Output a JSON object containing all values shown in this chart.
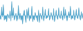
{
  "values": [
    -0.15,
    -0.25,
    0.55,
    -0.1,
    0.7,
    -0.3,
    -0.2,
    -0.15,
    -0.4,
    0.1,
    -0.05,
    -0.2,
    0.3,
    -0.35,
    0.9,
    -0.15,
    0.5,
    -0.3,
    -0.1,
    0.15,
    -0.35,
    -0.2,
    0.65,
    -0.25,
    0.15,
    -0.3,
    -0.1,
    -0.55,
    0.1,
    0.35,
    -0.15,
    -0.45,
    0.4,
    -0.2,
    0.5,
    -0.35,
    -0.1,
    -0.2,
    0.6,
    -0.4,
    -0.1,
    -0.3,
    0.2,
    -0.1,
    -0.2,
    -0.4,
    0.35,
    -0.45,
    0.15,
    -0.1,
    -0.25,
    0.55,
    -0.35,
    -0.1,
    0.4,
    -0.2,
    -0.15,
    -0.1,
    0.45,
    -0.3,
    -0.15,
    0.2,
    -0.1,
    -0.3,
    0.45,
    -0.4,
    -0.1,
    0.35,
    -0.15,
    -0.25,
    0.5,
    -0.1,
    -0.2,
    0.3,
    -0.15,
    -0.3,
    0.55,
    -0.2,
    0.4,
    -0.1,
    -0.35,
    -0.1,
    0.25,
    -0.15,
    0.6,
    -0.25,
    -0.1,
    -0.2,
    0.35,
    -0.3,
    -0.1,
    0.4,
    -0.15,
    -0.2,
    0.5,
    -0.1,
    -0.3,
    0.25,
    -0.2,
    0.15
  ],
  "fill_color": "#5bafd6",
  "line_color": "#4a9ec4",
  "background_color": "#ffffff",
  "ylim": [
    -1.0,
    1.0
  ]
}
